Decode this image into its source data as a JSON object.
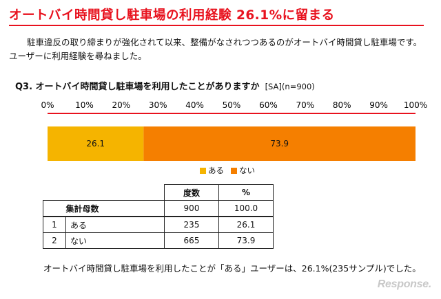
{
  "title": "オートバイ時間貸し駐車場の利用経験 26.1%に留まる",
  "intro": "駐車違反の取り締まりが強化されて以来、整備がなされつつあるのがオートバイ時間貸し駐車場です。ユーザーに利用経験を尋ねました。",
  "question": {
    "label": "Q3. オートバイ時間貸し駐車場を利用したことがありますか",
    "meta": "[SA](n=900)"
  },
  "colors": {
    "title": "#e8121e",
    "aru": "#f5b400",
    "nai": "#f57f00"
  },
  "chart_data": {
    "type": "bar",
    "stacked": true,
    "orientation": "horizontal",
    "categories": [
      ""
    ],
    "series": [
      {
        "name": "ある",
        "values": [
          26.1
        ],
        "color": "#f5b400"
      },
      {
        "name": "ない",
        "values": [
          73.9
        ],
        "color": "#f57f00"
      }
    ],
    "xlim": [
      0,
      100
    ],
    "xticks": [
      "0%",
      "10%",
      "20%",
      "30%",
      "40%",
      "50%",
      "60%",
      "70%",
      "80%",
      "90%",
      "100%"
    ],
    "legend": "bottom",
    "grid": false
  },
  "table": {
    "headers": [
      "度数",
      "%"
    ],
    "rows": [
      {
        "no": "",
        "label": "集計母数",
        "count": "900",
        "pct": "100.0"
      },
      {
        "no": "1",
        "label": "ある",
        "count": "235",
        "pct": "26.1"
      },
      {
        "no": "2",
        "label": "ない",
        "count": "665",
        "pct": "73.9"
      }
    ]
  },
  "conclusion": "オートバイ時間貸し駐車場を利用したことが「ある」ユーザーは、26.1%(235サンプル)でした。",
  "watermark": "Response."
}
